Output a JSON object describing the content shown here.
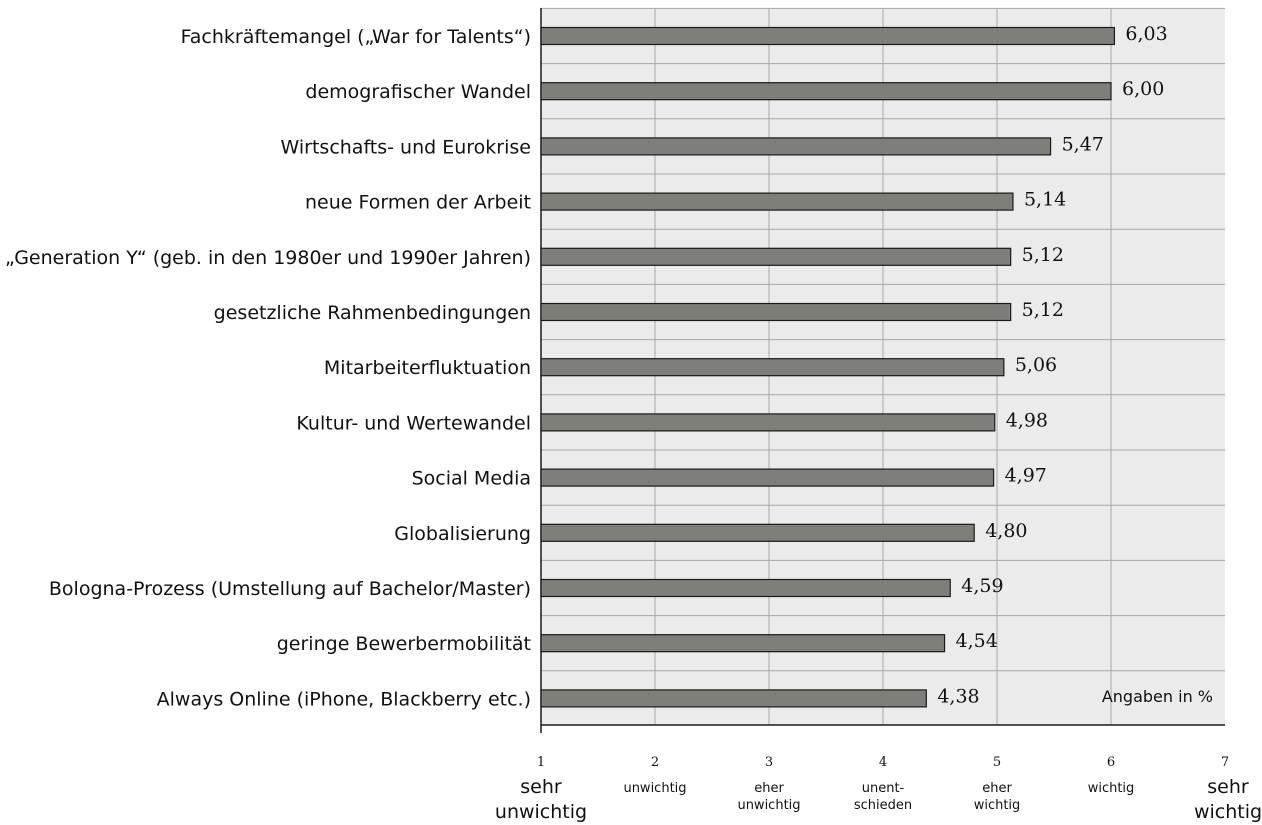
{
  "chart_data": {
    "type": "bar",
    "orientation": "horizontal",
    "categories": [
      "Fachkräftemangel („War for Talents“)",
      "demografischer Wandel",
      "Wirtschafts- und Eurokrise",
      "neue Formen der Arbeit",
      "„Generation Y“ (geb. in den 1980er und 1990er Jahren)",
      "gesetzliche Rahmenbedingungen",
      "Mitarbeiterfluktuation",
      "Kultur- und Wertewandel",
      "Social Media",
      "Globalisierung",
      "Bologna-Prozess (Umstellung auf Bachelor/Master)",
      "geringe Bewerbermobilität",
      "Always Online (iPhone, Blackberry etc.)"
    ],
    "values": [
      6.03,
      6.0,
      5.47,
      5.14,
      5.12,
      5.12,
      5.06,
      4.98,
      4.97,
      4.8,
      4.59,
      4.54,
      4.38
    ],
    "value_labels": [
      "6,03",
      "6,00",
      "5,47",
      "5,14",
      "5,12",
      "5,12",
      "5,06",
      "4,98",
      "4,97",
      "4,80",
      "4,59",
      "4,54",
      "4,38"
    ],
    "xlim": [
      1,
      7
    ],
    "x_ticks": [
      {
        "value": 1,
        "number": "1",
        "label": [
          "sehr",
          "unwichtig"
        ],
        "size": "large"
      },
      {
        "value": 2,
        "number": "2",
        "label": [
          "unwichtig"
        ],
        "size": "small"
      },
      {
        "value": 3,
        "number": "3",
        "label": [
          "eher",
          "unwichtig"
        ],
        "size": "small"
      },
      {
        "value": 4,
        "number": "4",
        "label": [
          "unent-",
          "schieden"
        ],
        "size": "small"
      },
      {
        "value": 5,
        "number": "5",
        "label": [
          "eher",
          "wichtig"
        ],
        "size": "small"
      },
      {
        "value": 6,
        "number": "6",
        "label": [
          "wichtig"
        ],
        "size": "small"
      },
      {
        "value": 7,
        "number": "7",
        "label": [
          "sehr",
          "wichtig"
        ],
        "size": "large"
      }
    ],
    "annotation": "Angaben in %",
    "grid": true,
    "colors": {
      "bar": "#7f7f7a",
      "bar_stroke": "#1a1a1a",
      "plot_background": "#ebebeb",
      "grid": "#a8a8a8",
      "axis": "#1a1a1a"
    }
  }
}
